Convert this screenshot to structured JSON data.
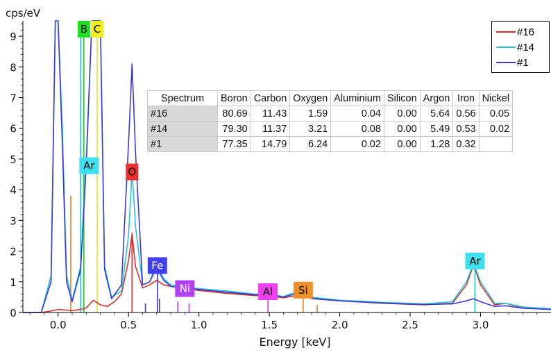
{
  "chart_data": {
    "type": "line",
    "ylabel": "cps/eV",
    "xlabel": "Energy [keV]",
    "xlim": [
      -0.25,
      3.5
    ],
    "ylim": [
      0,
      9.5
    ],
    "x_ticks": [
      0.0,
      0.5,
      1.0,
      1.5,
      2.0,
      2.5,
      3.0
    ],
    "x_tick_labels": [
      "0.0",
      "0.5",
      "1.0",
      "1.5",
      "2.0",
      "2.5",
      "3.0"
    ],
    "y_ticks": [
      0,
      1,
      2,
      3,
      4,
      5,
      6,
      7,
      8,
      9
    ],
    "y_tick_labels": [
      "0",
      "1",
      "2",
      "3",
      "4",
      "5",
      "6",
      "7",
      "8",
      "9"
    ],
    "grid": false,
    "legend_position": "top-right",
    "series": [
      {
        "name": "#16",
        "color": "#d0312d",
        "points": [
          [
            -0.25,
            0
          ],
          [
            -0.12,
            0
          ],
          [
            -0.05,
            0.05
          ],
          [
            0.0,
            0.1
          ],
          [
            0.05,
            0.08
          ],
          [
            0.1,
            0.06
          ],
          [
            0.16,
            0.1
          ],
          [
            0.2,
            0.15
          ],
          [
            0.25,
            0.4
          ],
          [
            0.3,
            0.25
          ],
          [
            0.35,
            0.2
          ],
          [
            0.4,
            0.35
          ],
          [
            0.45,
            0.6
          ],
          [
            0.5,
            1.7
          ],
          [
            0.525,
            2.55
          ],
          [
            0.55,
            1.5
          ],
          [
            0.6,
            0.8
          ],
          [
            0.65,
            0.9
          ],
          [
            0.7,
            1.05
          ],
          [
            0.75,
            0.9
          ],
          [
            0.8,
            0.85
          ],
          [
            0.9,
            0.78
          ],
          [
            1.0,
            0.72
          ],
          [
            1.2,
            0.62
          ],
          [
            1.4,
            0.55
          ],
          [
            1.49,
            0.55
          ],
          [
            1.6,
            0.48
          ],
          [
            1.74,
            0.6
          ],
          [
            1.8,
            0.45
          ],
          [
            2.0,
            0.38
          ],
          [
            2.3,
            0.3
          ],
          [
            2.6,
            0.25
          ],
          [
            2.8,
            0.3
          ],
          [
            2.9,
            0.9
          ],
          [
            2.95,
            1.55
          ],
          [
            3.0,
            0.9
          ],
          [
            3.1,
            0.25
          ],
          [
            3.18,
            0.3
          ],
          [
            3.3,
            0.15
          ],
          [
            3.5,
            0.1
          ]
        ]
      },
      {
        "name": "#14",
        "color": "#27c4d4",
        "points": [
          [
            -0.25,
            0
          ],
          [
            -0.12,
            0
          ],
          [
            -0.05,
            1.2
          ],
          [
            -0.02,
            9.5
          ],
          [
            0.0,
            9.5
          ],
          [
            0.03,
            6.0
          ],
          [
            0.06,
            1.2
          ],
          [
            0.1,
            0.4
          ],
          [
            0.16,
            1.5
          ],
          [
            0.2,
            5.0
          ],
          [
            0.24,
            9.5
          ],
          [
            0.3,
            9.5
          ],
          [
            0.33,
            1.5
          ],
          [
            0.38,
            0.5
          ],
          [
            0.45,
            0.7
          ],
          [
            0.5,
            2.5
          ],
          [
            0.525,
            4.6
          ],
          [
            0.55,
            2.8
          ],
          [
            0.6,
            0.9
          ],
          [
            0.65,
            1.0
          ],
          [
            0.7,
            1.6
          ],
          [
            0.75,
            1.1
          ],
          [
            0.8,
            0.9
          ],
          [
            0.9,
            0.82
          ],
          [
            1.0,
            0.78
          ],
          [
            1.2,
            0.7
          ],
          [
            1.4,
            0.6
          ],
          [
            1.49,
            0.62
          ],
          [
            1.6,
            0.52
          ],
          [
            1.74,
            0.75
          ],
          [
            1.8,
            0.5
          ],
          [
            2.0,
            0.4
          ],
          [
            2.3,
            0.33
          ],
          [
            2.6,
            0.28
          ],
          [
            2.8,
            0.35
          ],
          [
            2.9,
            1.0
          ],
          [
            2.95,
            1.6
          ],
          [
            3.0,
            1.0
          ],
          [
            3.1,
            0.3
          ],
          [
            3.18,
            0.3
          ],
          [
            3.3,
            0.18
          ],
          [
            3.5,
            0.12
          ]
        ]
      },
      {
        "name": "#1",
        "color": "#3a3ad6",
        "points": [
          [
            -0.25,
            0
          ],
          [
            -0.12,
            0
          ],
          [
            -0.05,
            1.0
          ],
          [
            -0.02,
            9.5
          ],
          [
            0.0,
            9.5
          ],
          [
            0.03,
            5.5
          ],
          [
            0.06,
            1.0
          ],
          [
            0.1,
            0.35
          ],
          [
            0.16,
            1.4
          ],
          [
            0.2,
            4.8
          ],
          [
            0.24,
            9.5
          ],
          [
            0.3,
            9.5
          ],
          [
            0.33,
            1.4
          ],
          [
            0.38,
            0.45
          ],
          [
            0.45,
            0.9
          ],
          [
            0.5,
            5.5
          ],
          [
            0.525,
            8.1
          ],
          [
            0.55,
            5.2
          ],
          [
            0.6,
            0.9
          ],
          [
            0.65,
            1.0
          ],
          [
            0.7,
            1.45
          ],
          [
            0.75,
            1.05
          ],
          [
            0.8,
            0.85
          ],
          [
            0.9,
            0.8
          ],
          [
            1.0,
            0.75
          ],
          [
            1.2,
            0.66
          ],
          [
            1.4,
            0.58
          ],
          [
            1.49,
            0.6
          ],
          [
            1.6,
            0.5
          ],
          [
            1.74,
            0.68
          ],
          [
            1.8,
            0.46
          ],
          [
            2.0,
            0.38
          ],
          [
            2.3,
            0.31
          ],
          [
            2.6,
            0.26
          ],
          [
            2.8,
            0.28
          ],
          [
            2.9,
            0.38
          ],
          [
            2.95,
            0.45
          ],
          [
            3.0,
            0.35
          ],
          [
            3.1,
            0.2
          ],
          [
            3.18,
            0.22
          ],
          [
            3.3,
            0.14
          ],
          [
            3.5,
            0.1
          ]
        ]
      }
    ],
    "element_lines": [
      {
        "x": 0.183,
        "y": 9.5,
        "color": "#22c422"
      },
      {
        "x": 0.277,
        "y": 9.5,
        "color": "#e6e622"
      },
      {
        "x": 0.16,
        "y": 9.5,
        "color": "#27c4d4"
      },
      {
        "x": 0.09,
        "y": 3.8,
        "color": "#e6822a"
      },
      {
        "x": 0.525,
        "y": 2.6,
        "color": "#e03030"
      },
      {
        "x": 0.705,
        "y": 1.55,
        "color": "#3a3ad6"
      },
      {
        "x": 0.62,
        "y": 0.3,
        "color": "#3a3ad6"
      },
      {
        "x": 0.72,
        "y": 0.45,
        "color": "#3a3ad6"
      },
      {
        "x": 0.85,
        "y": 0.35,
        "color": "#b040e0"
      },
      {
        "x": 0.93,
        "y": 0.3,
        "color": "#b040e0"
      },
      {
        "x": 1.49,
        "y": 0.45,
        "color": "#e040e0"
      },
      {
        "x": 1.74,
        "y": 0.7,
        "color": "#e6822a"
      },
      {
        "x": 1.84,
        "y": 0.25,
        "color": "#e6822a"
      },
      {
        "x": 2.96,
        "y": 1.6,
        "color": "#27c4d4"
      }
    ],
    "element_labels": [
      {
        "text": "B",
        "x": 0.183,
        "y": 9.5,
        "bg": "#22dd22",
        "fg": "#000000"
      },
      {
        "text": "C",
        "x": 0.277,
        "y": 9.5,
        "bg": "#eeee22",
        "fg": "#000000"
      },
      {
        "text": "Ar",
        "x": 0.22,
        "y": 5.05,
        "bg": "#3ee0ee",
        "fg": "#000000"
      },
      {
        "text": "O",
        "x": 0.525,
        "y": 4.85,
        "bg": "#ee3030",
        "fg": "#000000"
      },
      {
        "text": "Fe",
        "x": 0.705,
        "y": 1.8,
        "bg": "#4040ee",
        "fg": "#ffffff"
      },
      {
        "text": "Ni",
        "x": 0.9,
        "y": 1.05,
        "bg": "#b040f0",
        "fg": "#ffffff"
      },
      {
        "text": "Al",
        "x": 1.49,
        "y": 0.95,
        "bg": "#ee40ee",
        "fg": "#000000"
      },
      {
        "text": "Si",
        "x": 1.74,
        "y": 1.0,
        "bg": "#f0902a",
        "fg": "#000000"
      },
      {
        "text": "Ar",
        "x": 2.96,
        "y": 1.95,
        "bg": "#3ee0ee",
        "fg": "#000000"
      }
    ],
    "table": {
      "headers": [
        "Spectrum",
        "Boron",
        "Carbon",
        "Oxygen",
        "Aluminium",
        "Silicon",
        "Argon",
        "Iron",
        "Nickel"
      ],
      "rows": [
        [
          "#16",
          "80.69",
          "11.43",
          "1.59",
          "0.04",
          "0.00",
          "5.64",
          "0.56",
          "0.05"
        ],
        [
          "#14",
          "79.30",
          "11.37",
          "3.21",
          "0.08",
          "0.00",
          "5.49",
          "0.53",
          "0.02"
        ],
        [
          "#1",
          "77.35",
          "14.79",
          "6.24",
          "0.02",
          "0.00",
          "1.28",
          "0.32",
          ""
        ]
      ]
    }
  }
}
